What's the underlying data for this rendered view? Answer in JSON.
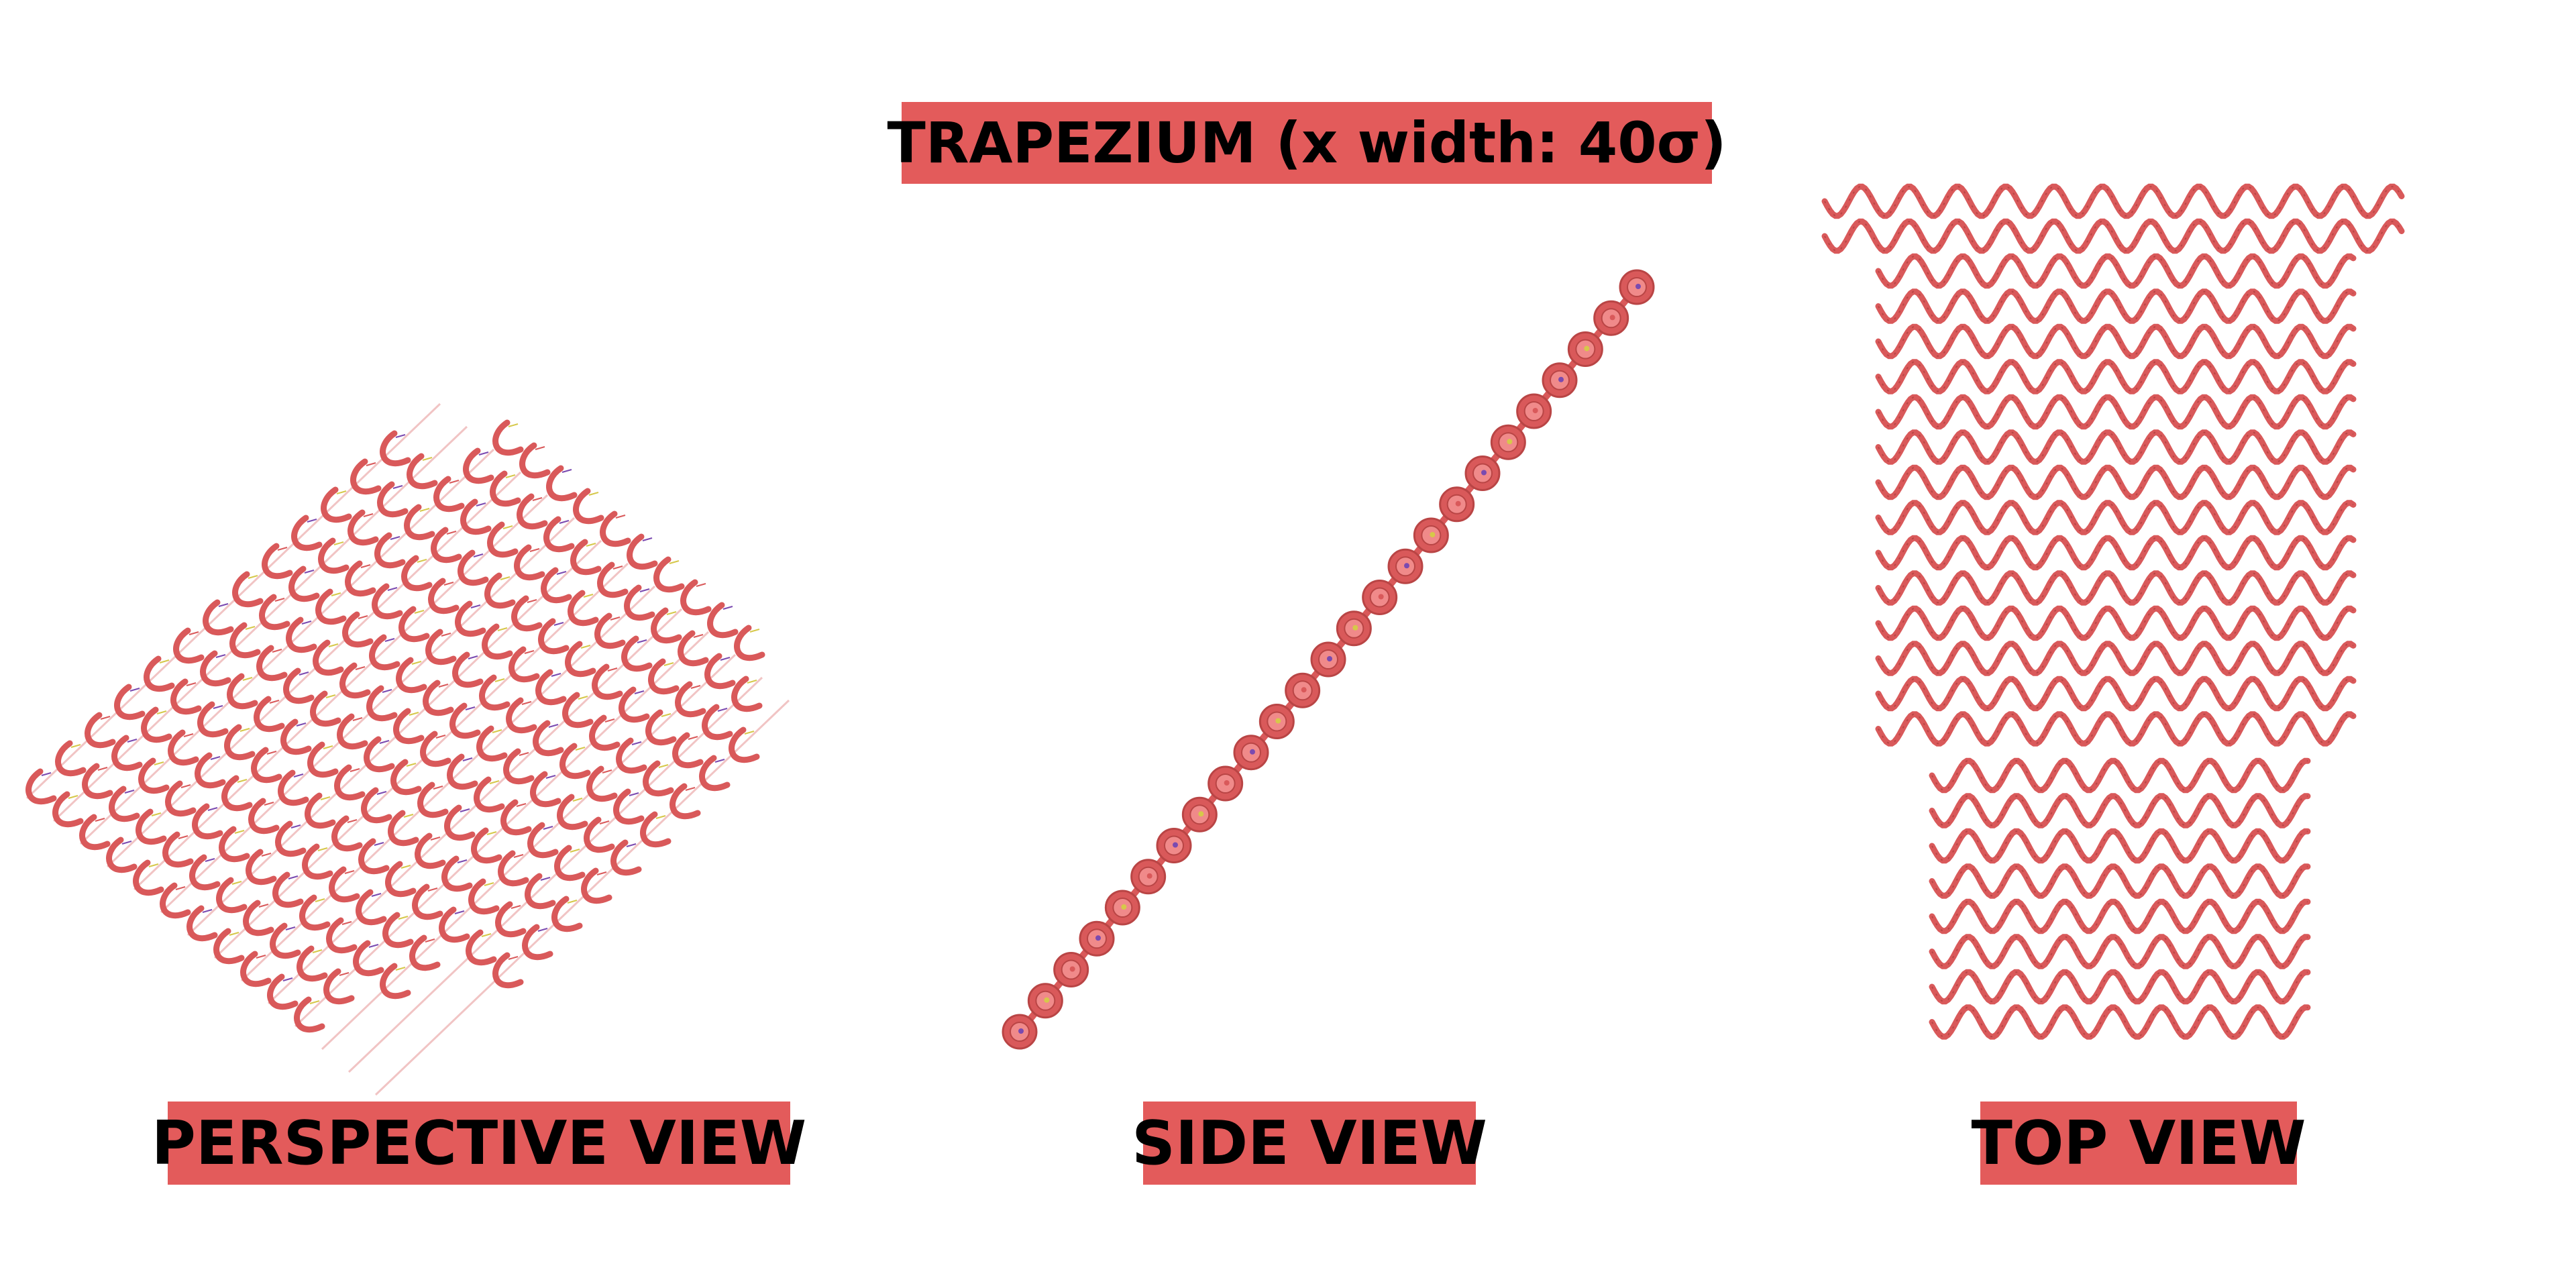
{
  "title": "TRAPEZIUM (x width: 40σ)",
  "views": {
    "perspective": "PERSPECTIVE VIEW",
    "side": "SIDE VIEW",
    "top": "TOP VIEW"
  },
  "colors": {
    "label_bg": "#e35b5b",
    "strand": "#d9595a",
    "strand_dark": "#b94545",
    "base_pair_accents": [
      "#7a4ab0",
      "#d6c84a",
      "#d9595a"
    ]
  }
}
